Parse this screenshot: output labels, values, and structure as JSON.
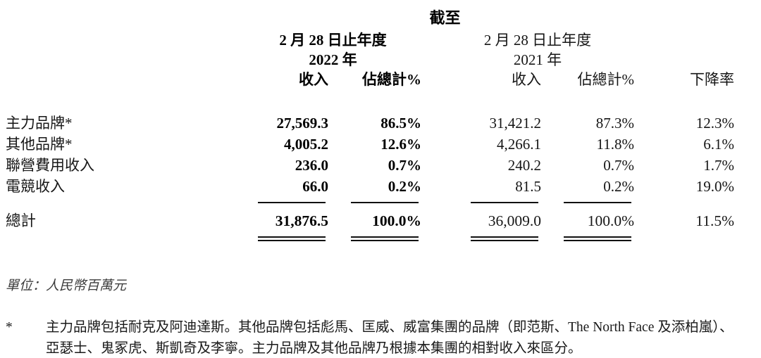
{
  "table": {
    "caption": "截至",
    "groups": {
      "y2022": {
        "period": "2 月 28 日止年度",
        "year": "2022 年"
      },
      "y2021": {
        "period": "2 月 28 日止年度",
        "year": "2021 年"
      }
    },
    "columns": {
      "revenue_2022": "收入",
      "pct_2022": "佔總計%",
      "revenue_2021": "收入",
      "pct_2021": "佔總計%",
      "decline": "下降率"
    },
    "rows": [
      {
        "label": "主力品牌*",
        "revenue_2022": "27,569.3",
        "pct_2022": "86.5%",
        "revenue_2021": "31,421.2",
        "pct_2021": "87.3%",
        "decline": "12.3%"
      },
      {
        "label": "其他品牌*",
        "revenue_2022": "4,005.2",
        "pct_2022": "12.6%",
        "revenue_2021": "4,266.1",
        "pct_2021": "11.8%",
        "decline": "6.1%"
      },
      {
        "label": "聯營費用收入",
        "revenue_2022": "236.0",
        "pct_2022": "0.7%",
        "revenue_2021": "240.2",
        "pct_2021": "0.7%",
        "decline": "1.7%"
      },
      {
        "label": "電競收入",
        "revenue_2022": "66.0",
        "pct_2022": "0.2%",
        "revenue_2021": "81.5",
        "pct_2021": "0.2%",
        "decline": "19.0%"
      }
    ],
    "total": {
      "label": "總計",
      "revenue_2022": "31,876.5",
      "pct_2022": "100.0%",
      "revenue_2021": "36,009.0",
      "pct_2021": "100.0%",
      "decline": "11.5%"
    }
  },
  "notes": {
    "unit": "單位：人民幣百萬元",
    "footnote_marker": "*",
    "footnote_text": "主力品牌包括耐克及阿迪達斯。其他品牌包括彪馬、匡威、威富集團的品牌（即范斯、The North Face 及添柏嵐）、亞瑟士、鬼冢虎、斯凱奇及李寧。主力品牌及其他品牌乃根據本集團的相對收入來區分。"
  }
}
